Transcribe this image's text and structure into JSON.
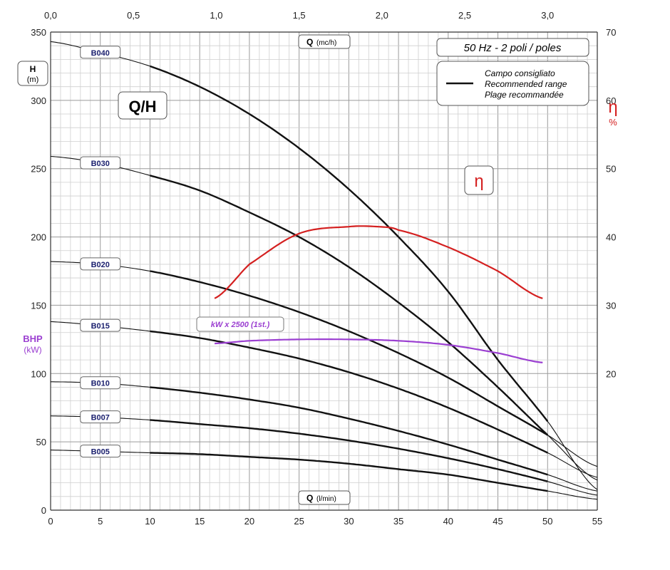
{
  "chart_data": {
    "type": "line",
    "title": "Q/H",
    "frequency_label": "50 Hz - 2 poli / poles",
    "legend": {
      "line1": "Campo consigliato",
      "line2": "Recommended range",
      "line3": "Plage recommandée",
      "placement": "top-right"
    },
    "x_bottom": {
      "label": "Q",
      "unit": "(l/min)",
      "range": [
        0,
        55
      ],
      "ticks": [
        "0",
        "5",
        "10",
        "15",
        "20",
        "25",
        "30",
        "35",
        "40",
        "45",
        "50",
        "55"
      ]
    },
    "x_top": {
      "label": "Q",
      "unit": "(mc/h)",
      "range": [
        0,
        3.3
      ],
      "ticks": [
        "0,0",
        "0,5",
        "1,0",
        "1,5",
        "2,0",
        "2,5",
        "3,0"
      ]
    },
    "y_left": {
      "label": "H",
      "unit": "(m)",
      "range": [
        0,
        350
      ],
      "ticks": [
        "0",
        "50",
        "100",
        "150",
        "200",
        "250",
        "300",
        "350"
      ]
    },
    "y_left_secondary": {
      "label": "BHP",
      "unit": "(kW)"
    },
    "y_right": {
      "label": "η",
      "unit": "%",
      "range": [
        0,
        70
      ],
      "ticks": [
        "20",
        "30",
        "40",
        "50",
        "60",
        "70"
      ]
    },
    "efficiency_label": "η",
    "power_label": "kW x 2500 (1st.)",
    "grid": true,
    "recommended_range_lpm": [
      10,
      50
    ],
    "series": [
      {
        "name": "B040",
        "x": [
          0,
          5,
          10,
          15,
          20,
          25,
          30,
          35,
          40,
          45,
          50,
          55
        ],
        "y": [
          343,
          335,
          325,
          310,
          290,
          265,
          235,
          200,
          160,
          110,
          65,
          15
        ]
      },
      {
        "name": "B030",
        "x": [
          0,
          5,
          10,
          15,
          20,
          25,
          30,
          35,
          40,
          45,
          50,
          55
        ],
        "y": [
          259,
          254,
          245,
          234,
          218,
          200,
          178,
          152,
          123,
          90,
          55,
          22
        ]
      },
      {
        "name": "B020",
        "x": [
          0,
          5,
          10,
          15,
          20,
          25,
          30,
          35,
          40,
          45,
          50,
          55
        ],
        "y": [
          182,
          180,
          175,
          167,
          157,
          145,
          131,
          115,
          97,
          76,
          55,
          32
        ]
      },
      {
        "name": "B015",
        "x": [
          0,
          5,
          10,
          15,
          20,
          25,
          30,
          35,
          40,
          45,
          50,
          55
        ],
        "y": [
          138,
          135,
          131,
          126,
          119,
          111,
          101,
          89,
          75,
          59,
          42,
          24
        ]
      },
      {
        "name": "B010",
        "x": [
          0,
          5,
          10,
          15,
          20,
          25,
          30,
          35,
          40,
          45,
          50,
          55
        ],
        "y": [
          94,
          93,
          90,
          86,
          81,
          75,
          67,
          58,
          48,
          37,
          26,
          14
        ]
      },
      {
        "name": "B007",
        "x": [
          0,
          5,
          10,
          15,
          20,
          25,
          30,
          35,
          40,
          45,
          50,
          55
        ],
        "y": [
          69,
          68,
          66,
          63,
          60,
          56,
          51,
          45,
          38,
          30,
          21,
          11
        ]
      },
      {
        "name": "B005",
        "x": [
          0,
          5,
          10,
          15,
          20,
          25,
          30,
          35,
          40,
          45,
          50,
          55
        ],
        "y": [
          44,
          43,
          42,
          41,
          39,
          37,
          34,
          30,
          26,
          20,
          14,
          8
        ]
      }
    ],
    "efficiency_curve": {
      "x": [
        16.5,
        20,
        25,
        30,
        33,
        35,
        40,
        45,
        49.5
      ],
      "y": [
        31,
        36,
        40.5,
        41.5,
        41.5,
        41,
        38.5,
        35,
        31
      ]
    },
    "power_curve": {
      "x": [
        16.5,
        20,
        25,
        30,
        35,
        40,
        45,
        49.5
      ],
      "y": [
        122,
        124,
        125,
        125,
        124,
        121,
        115,
        108
      ]
    }
  }
}
